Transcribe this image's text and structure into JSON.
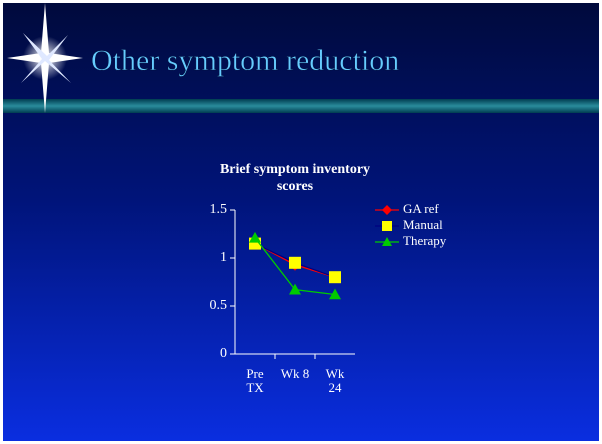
{
  "slide": {
    "title": "Other symptom reduction"
  },
  "chart_data": {
    "type": "line",
    "title": "Brief symptom inventory scores",
    "categories": [
      "Pre TX",
      "Wk 8",
      "Wk 24"
    ],
    "series": [
      {
        "name": "GA ref",
        "color": "#ff0000",
        "line_color": "#ff0000",
        "marker": "diamond",
        "values": [
          1.15,
          0.93,
          0.8
        ]
      },
      {
        "name": "Manual",
        "color": "#ffff00",
        "line_color": "#000080",
        "marker": "square",
        "values": [
          1.15,
          0.95,
          0.8
        ]
      },
      {
        "name": "Therapy",
        "color": "#00cc00",
        "line_color": "#00cc00",
        "marker": "triangle",
        "values": [
          1.21,
          0.67,
          0.62
        ]
      }
    ],
    "ylim": [
      0,
      1.5
    ],
    "yticks": [
      0,
      0.5,
      1,
      1.5
    ],
    "legend": "right"
  }
}
